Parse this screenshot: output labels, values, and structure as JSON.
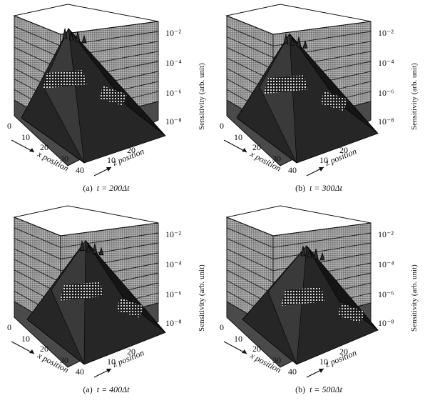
{
  "panels": [
    {
      "tag": "(a)",
      "eq": "t = 200Δt",
      "step": 200
    },
    {
      "tag": "(b)",
      "eq": "t = 300Δt",
      "step": 300
    },
    {
      "tag": "(a)",
      "eq": "t = 400Δt",
      "step": 400
    },
    {
      "tag": "(b)",
      "eq": "t = 500Δt",
      "step": 500
    }
  ],
  "axes": {
    "x_label": "x position",
    "z_label": "z position",
    "y_label": "Sensitivity (arb. unit)",
    "x_ticks": [
      "0",
      "10",
      "20",
      "30",
      "40"
    ],
    "z_ticks": [
      "10",
      "20"
    ],
    "y_ticks": [
      "10⁻⁸",
      "10⁻⁶",
      "10⁻⁴",
      "10⁻²"
    ]
  },
  "chart_data": {
    "type": "surface3d",
    "title": "",
    "xlabel": "x position",
    "zlabel": "z position",
    "ylabel": "Sensitivity (arb. unit)",
    "x_range": [
      0,
      40
    ],
    "z_range": [
      0,
      25
    ],
    "y_scale": "log",
    "y_ticks": [
      "10⁻⁸",
      "10⁻⁶",
      "10⁻⁴",
      "10⁻²"
    ],
    "grid": true,
    "colors": {
      "wall": "#8c8c8c",
      "grid": "#1a1a1a",
      "surface": "#262626",
      "mesh": "#e6e6e6"
    }
  }
}
